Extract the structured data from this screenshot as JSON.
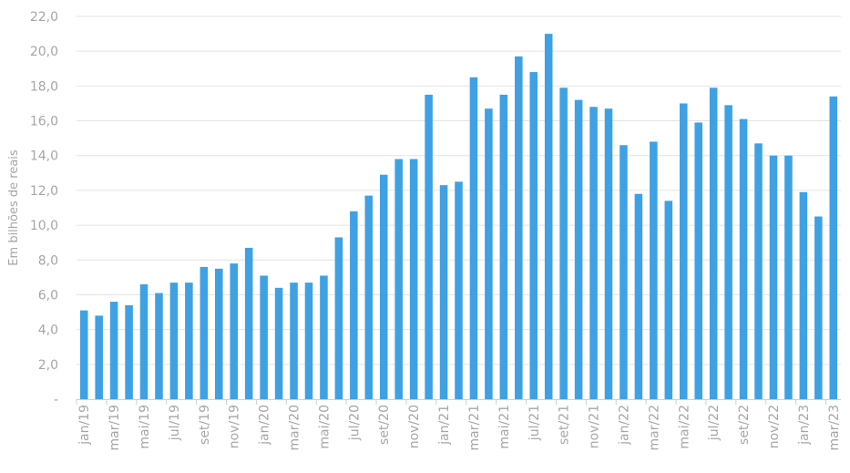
{
  "chart_data": {
    "type": "bar",
    "ylabel": "Em bilhões de reais",
    "ylim": [
      0,
      22
    ],
    "yticks": [
      0,
      2,
      4,
      6,
      8,
      10,
      12,
      14,
      16,
      18,
      20,
      22
    ],
    "ytick_labels": [
      "-",
      "2,0",
      "4,0",
      "6,0",
      "8,0",
      "10,0",
      "12,0",
      "14,0",
      "16,0",
      "18,0",
      "20,0",
      "22,0"
    ],
    "grid": true,
    "bar_color": "#3ea1e4",
    "categories": [
      "jan/19",
      "fev/19",
      "mar/19",
      "abr/19",
      "mai/19",
      "jun/19",
      "jul/19",
      "ago/19",
      "set/19",
      "out/19",
      "nov/19",
      "dez/19",
      "jan/20",
      "fev/20",
      "mar/20",
      "abr/20",
      "mai/20",
      "jun/20",
      "jul/20",
      "ago/20",
      "set/20",
      "out/20",
      "nov/20",
      "dez/20",
      "jan/21",
      "fev/21",
      "mar/21",
      "abr/21",
      "mai/21",
      "jun/21",
      "jul/21",
      "ago/21",
      "set/21",
      "out/21",
      "nov/21",
      "dez/21",
      "jan/22",
      "fev/22",
      "mar/22",
      "abr/22",
      "mai/22",
      "jun/22",
      "jul/22",
      "ago/22",
      "set/22",
      "out/22",
      "nov/22",
      "dez/22",
      "jan/23",
      "fev/23",
      "mar/23"
    ],
    "visible_tick_labels": [
      "jan/19",
      "mar/19",
      "mai/19",
      "jul/19",
      "set/19",
      "nov/19",
      "jan/20",
      "mar/20",
      "mai/20",
      "jul/20",
      "set/20",
      "nov/20",
      "jan/21",
      "mar/21",
      "mai/21",
      "jul/21",
      "set/21",
      "nov/21",
      "jan/22",
      "mar/22",
      "mai/22",
      "jul/22",
      "set/22",
      "nov/22",
      "jan/23",
      "mar/23"
    ],
    "values": [
      5.1,
      4.8,
      5.6,
      5.4,
      6.6,
      6.1,
      6.7,
      6.7,
      7.6,
      7.5,
      7.8,
      8.7,
      7.1,
      6.4,
      6.7,
      6.7,
      7.1,
      9.3,
      10.8,
      11.7,
      12.9,
      13.8,
      13.8,
      17.5,
      12.3,
      12.5,
      18.5,
      16.7,
      17.5,
      19.7,
      18.8,
      21.0,
      17.9,
      17.2,
      16.8,
      16.7,
      14.6,
      11.8,
      14.8,
      11.4,
      17.0,
      15.9,
      17.9,
      16.9,
      16.1,
      14.7,
      14.0,
      14.0,
      11.9,
      10.5,
      17.4
    ]
  }
}
